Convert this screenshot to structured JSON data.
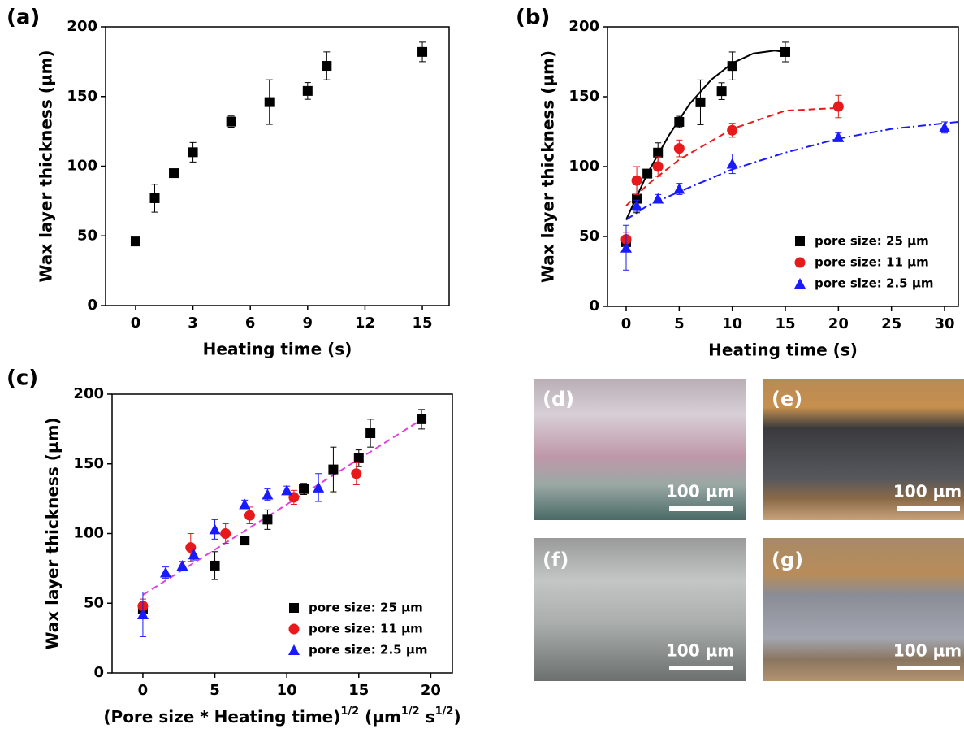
{
  "chart_data": [
    {
      "type": "scatter",
      "panel_label": "(a)",
      "xlabel": "Heating time (s)",
      "ylabel": "Wax layer thickness (µm)",
      "xlim": [
        -1.57,
        16.4
      ],
      "ylim": [
        0,
        200
      ],
      "xticks": [
        0,
        3,
        6,
        9,
        12,
        15
      ],
      "yticks": [
        0,
        50,
        100,
        150,
        200
      ],
      "legend": null,
      "series": [
        {
          "name": "pore size: 25 µm",
          "color": "#000000",
          "marker": "square",
          "x": [
            0,
            1,
            2,
            3,
            5,
            7,
            9,
            10,
            15
          ],
          "values": [
            46,
            77,
            95,
            110,
            132,
            146,
            154,
            172,
            182
          ],
          "errors": [
            3,
            10,
            2,
            7,
            4,
            16,
            6,
            10,
            7
          ]
        }
      ],
      "fits": []
    },
    {
      "type": "scatter",
      "panel_label": "(b)",
      "xlabel": "Heating time (s)",
      "ylabel": "Wax layer thickness (µm)",
      "xlim": [
        -1.76,
        31.3
      ],
      "ylim": [
        0,
        200
      ],
      "xticks": [
        0,
        5,
        10,
        15,
        20,
        25,
        30
      ],
      "yticks": [
        0,
        50,
        100,
        150,
        200
      ],
      "legend": "lower right",
      "series": [
        {
          "name": "pore size: 25 µm",
          "color": "#000000",
          "marker": "square",
          "x": [
            0,
            1,
            2,
            3,
            5,
            7,
            9,
            10,
            15
          ],
          "values": [
            46,
            77,
            95,
            110,
            132,
            146,
            154,
            172,
            182
          ],
          "errors": [
            3,
            10,
            2,
            7,
            4,
            16,
            6,
            10,
            7
          ]
        },
        {
          "name": "pore size: 11 µm",
          "color": "#e8191b",
          "marker": "circle",
          "x": [
            0,
            1,
            3,
            5,
            10,
            20
          ],
          "values": [
            48,
            90,
            100,
            113,
            126,
            143
          ],
          "errors": [
            5,
            10,
            7,
            6,
            5,
            8
          ]
        },
        {
          "name": "pore size: 2.5 µm",
          "color": "#1a1aff",
          "marker": "triangle",
          "x": [
            0,
            1,
            3,
            5,
            10,
            20,
            30
          ],
          "values": [
            42,
            72,
            77,
            84,
            102,
            121,
            128
          ],
          "errors": [
            16,
            4,
            3,
            4,
            7,
            3,
            4
          ]
        }
      ],
      "fits": [
        {
          "color": "#000000",
          "dash": "solid",
          "x": [
            0,
            2,
            4,
            6,
            8,
            10,
            12,
            14,
            15
          ],
          "values": [
            62,
            95,
            122,
            145,
            162,
            174,
            181,
            183,
            182
          ]
        },
        {
          "color": "#e8191b",
          "dash": "dashed",
          "x": [
            0,
            2,
            5,
            10,
            15,
            20
          ],
          "values": [
            72,
            87,
            105,
            127,
            140,
            142
          ]
        },
        {
          "color": "#1a1aff",
          "dash": "dashdot",
          "x": [
            0,
            2,
            5,
            10,
            15,
            20,
            25,
            30,
            31.3
          ],
          "values": [
            62,
            72,
            82,
            98,
            110,
            120,
            127,
            131,
            132
          ]
        }
      ]
    },
    {
      "type": "scatter",
      "panel_label": "(c)",
      "xlabel_parts": [
        {
          "text": "(Pore size * Heating time)",
          "sup": false
        },
        {
          "text": "1/2",
          "sup": true
        },
        {
          "text": " (µm",
          "sup": false
        },
        {
          "text": "1/2",
          "sup": true
        },
        {
          "text": " s",
          "sup": false
        },
        {
          "text": "1/2",
          "sup": true
        },
        {
          "text": ")",
          "sup": false
        }
      ],
      "ylabel": "Wax layer thickness (µm)",
      "xlim": [
        -2.14,
        21.5
      ],
      "ylim": [
        0,
        200
      ],
      "xticks": [
        0,
        5,
        10,
        15,
        20
      ],
      "yticks": [
        0,
        50,
        100,
        150,
        200
      ],
      "legend": "lower right",
      "series": [
        {
          "name": "pore size: 25 µm",
          "color": "#000000",
          "marker": "square",
          "x": [
            0,
            5,
            7.07,
            8.66,
            11.18,
            13.23,
            15,
            15.81,
            19.36
          ],
          "values": [
            46,
            77,
            95,
            110,
            132,
            146,
            154,
            172,
            182
          ],
          "errors": [
            3,
            10,
            2,
            7,
            4,
            16,
            6,
            10,
            7
          ]
        },
        {
          "name": "pore size: 11 µm",
          "color": "#e8191b",
          "marker": "circle",
          "x": [
            0,
            3.32,
            5.74,
            7.42,
            10.49,
            14.83
          ],
          "values": [
            48,
            90,
            100,
            113,
            126,
            143
          ],
          "errors": [
            5,
            10,
            7,
            6,
            5,
            8
          ]
        },
        {
          "name": "pore size: 2.5 µm",
          "color": "#1a1aff",
          "marker": "triangle",
          "x": [
            0,
            1.58,
            2.74,
            3.54,
            5,
            7.07,
            8.66,
            10,
            12.2
          ],
          "values": [
            42,
            72,
            77,
            85,
            103,
            121,
            128,
            131,
            133
          ],
          "errors": [
            16,
            4,
            3,
            4,
            7,
            3,
            4,
            3,
            10
          ]
        }
      ],
      "fits": [
        {
          "color": "#e040e0",
          "dash": "dashed",
          "x": [
            0,
            19.4
          ],
          "values": [
            56,
            182
          ]
        }
      ]
    }
  ],
  "images": [
    {
      "label": "(d)",
      "scale_bar": "100 µm"
    },
    {
      "label": "(e)",
      "scale_bar": "100 µm"
    },
    {
      "label": "(f)",
      "scale_bar": "100 µm"
    },
    {
      "label": "(g)",
      "scale_bar": "100 µm"
    }
  ]
}
